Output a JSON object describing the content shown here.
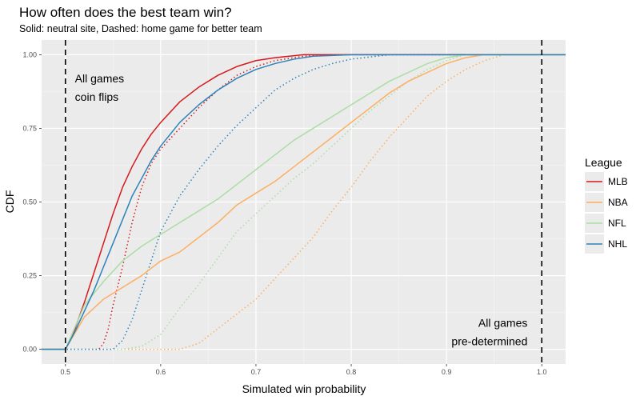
{
  "chart_data": {
    "type": "line",
    "title": "How often does the best team win?",
    "subtitle": "Solid: neutral site, Dashed: home game for better team",
    "xlabel": "Simulated win probability",
    "ylabel": "CDF",
    "xlim": [
      0.475,
      1.025
    ],
    "ylim": [
      -0.05,
      1.05
    ],
    "x_ticks": [
      0.5,
      0.6,
      0.7,
      0.8,
      0.9,
      1.0
    ],
    "x_tick_labels": [
      "0.5",
      "0.6",
      "0.7",
      "0.8",
      "0.9",
      "1.0"
    ],
    "y_ticks": [
      0,
      0.25,
      0.5,
      0.75,
      1.0
    ],
    "y_tick_labels": [
      "0.00",
      "0.25",
      "0.50",
      "0.75",
      "1.00"
    ],
    "grid": true,
    "legend": {
      "title": "League",
      "position": "right"
    },
    "reference_lines": [
      {
        "x": 0.5,
        "style": "dashed"
      },
      {
        "x": 1.0,
        "style": "dashed"
      }
    ],
    "annotations": [
      {
        "lines": [
          "All games",
          "coin flips"
        ],
        "x": 0.51,
        "y": 0.92,
        "anchor": "start"
      },
      {
        "lines": [
          "All games",
          "pre-determined"
        ],
        "x": 0.985,
        "y": 0.0,
        "anchor": "end"
      }
    ],
    "series": [
      {
        "name": "MLB",
        "style": "solid",
        "color": "#d7191c",
        "points": [
          [
            0.475,
            0
          ],
          [
            0.5,
            0
          ],
          [
            0.51,
            0.07
          ],
          [
            0.52,
            0.16
          ],
          [
            0.53,
            0.26
          ],
          [
            0.54,
            0.36
          ],
          [
            0.55,
            0.46
          ],
          [
            0.56,
            0.55
          ],
          [
            0.57,
            0.62
          ],
          [
            0.58,
            0.68
          ],
          [
            0.59,
            0.73
          ],
          [
            0.6,
            0.77
          ],
          [
            0.62,
            0.84
          ],
          [
            0.64,
            0.89
          ],
          [
            0.66,
            0.93
          ],
          [
            0.68,
            0.96
          ],
          [
            0.7,
            0.98
          ],
          [
            0.72,
            0.99
          ],
          [
            0.75,
            1.0
          ],
          [
            1.025,
            1.0
          ]
        ]
      },
      {
        "name": "MLB",
        "style": "dotted",
        "color": "#d7191c",
        "points": [
          [
            0.475,
            0
          ],
          [
            0.535,
            0
          ],
          [
            0.54,
            0.02
          ],
          [
            0.545,
            0.07
          ],
          [
            0.55,
            0.15
          ],
          [
            0.56,
            0.28
          ],
          [
            0.57,
            0.43
          ],
          [
            0.58,
            0.55
          ],
          [
            0.59,
            0.63
          ],
          [
            0.6,
            0.68
          ],
          [
            0.62,
            0.75
          ],
          [
            0.64,
            0.82
          ],
          [
            0.66,
            0.88
          ],
          [
            0.68,
            0.93
          ],
          [
            0.7,
            0.96
          ],
          [
            0.72,
            0.98
          ],
          [
            0.75,
            0.995
          ],
          [
            0.78,
            1.0
          ],
          [
            1.025,
            1.0
          ]
        ]
      },
      {
        "name": "NBA",
        "style": "solid",
        "color": "#fdae61",
        "points": [
          [
            0.475,
            0
          ],
          [
            0.5,
            0
          ],
          [
            0.52,
            0.11
          ],
          [
            0.54,
            0.17
          ],
          [
            0.56,
            0.21
          ],
          [
            0.58,
            0.25
          ],
          [
            0.6,
            0.3
          ],
          [
            0.62,
            0.33
          ],
          [
            0.64,
            0.38
          ],
          [
            0.66,
            0.43
          ],
          [
            0.68,
            0.49
          ],
          [
            0.7,
            0.53
          ],
          [
            0.72,
            0.57
          ],
          [
            0.74,
            0.62
          ],
          [
            0.76,
            0.67
          ],
          [
            0.78,
            0.72
          ],
          [
            0.8,
            0.77
          ],
          [
            0.82,
            0.82
          ],
          [
            0.84,
            0.87
          ],
          [
            0.86,
            0.91
          ],
          [
            0.88,
            0.94
          ],
          [
            0.9,
            0.97
          ],
          [
            0.92,
            0.99
          ],
          [
            0.94,
            1.0
          ],
          [
            1.025,
            1.0
          ]
        ]
      },
      {
        "name": "NBA",
        "style": "dotted",
        "color": "#fdae61",
        "points": [
          [
            0.475,
            0
          ],
          [
            0.6,
            0
          ],
          [
            0.62,
            0.0
          ],
          [
            0.64,
            0.02
          ],
          [
            0.66,
            0.07
          ],
          [
            0.68,
            0.12
          ],
          [
            0.7,
            0.17
          ],
          [
            0.72,
            0.24
          ],
          [
            0.74,
            0.31
          ],
          [
            0.76,
            0.38
          ],
          [
            0.78,
            0.47
          ],
          [
            0.8,
            0.55
          ],
          [
            0.82,
            0.64
          ],
          [
            0.84,
            0.72
          ],
          [
            0.86,
            0.79
          ],
          [
            0.88,
            0.86
          ],
          [
            0.9,
            0.91
          ],
          [
            0.92,
            0.95
          ],
          [
            0.94,
            0.98
          ],
          [
            0.96,
            1.0
          ],
          [
            1.025,
            1.0
          ]
        ]
      },
      {
        "name": "NFL",
        "style": "solid",
        "color": "#abdda4",
        "points": [
          [
            0.475,
            0
          ],
          [
            0.5,
            0
          ],
          [
            0.52,
            0.15
          ],
          [
            0.54,
            0.23
          ],
          [
            0.56,
            0.3
          ],
          [
            0.58,
            0.35
          ],
          [
            0.6,
            0.39
          ],
          [
            0.62,
            0.43
          ],
          [
            0.64,
            0.47
          ],
          [
            0.66,
            0.51
          ],
          [
            0.68,
            0.56
          ],
          [
            0.7,
            0.61
          ],
          [
            0.72,
            0.66
          ],
          [
            0.74,
            0.71
          ],
          [
            0.76,
            0.75
          ],
          [
            0.78,
            0.79
          ],
          [
            0.8,
            0.83
          ],
          [
            0.82,
            0.87
          ],
          [
            0.84,
            0.91
          ],
          [
            0.86,
            0.94
          ],
          [
            0.88,
            0.97
          ],
          [
            0.9,
            0.99
          ],
          [
            0.92,
            1.0
          ],
          [
            1.025,
            1.0
          ]
        ]
      },
      {
        "name": "NFL",
        "style": "dotted",
        "color": "#abdda4",
        "points": [
          [
            0.475,
            0
          ],
          [
            0.56,
            0
          ],
          [
            0.58,
            0.01
          ],
          [
            0.6,
            0.05
          ],
          [
            0.62,
            0.14
          ],
          [
            0.64,
            0.22
          ],
          [
            0.66,
            0.31
          ],
          [
            0.68,
            0.4
          ],
          [
            0.7,
            0.46
          ],
          [
            0.72,
            0.52
          ],
          [
            0.74,
            0.58
          ],
          [
            0.76,
            0.63
          ],
          [
            0.78,
            0.69
          ],
          [
            0.8,
            0.75
          ],
          [
            0.82,
            0.81
          ],
          [
            0.84,
            0.86
          ],
          [
            0.86,
            0.91
          ],
          [
            0.88,
            0.95
          ],
          [
            0.9,
            0.98
          ],
          [
            0.92,
            1.0
          ],
          [
            1.025,
            1.0
          ]
        ]
      },
      {
        "name": "NHL",
        "style": "solid",
        "color": "#2b83ba",
        "points": [
          [
            0.475,
            0
          ],
          [
            0.5,
            0
          ],
          [
            0.51,
            0.06
          ],
          [
            0.52,
            0.13
          ],
          [
            0.53,
            0.2
          ],
          [
            0.54,
            0.28
          ],
          [
            0.55,
            0.36
          ],
          [
            0.56,
            0.44
          ],
          [
            0.57,
            0.52
          ],
          [
            0.58,
            0.58
          ],
          [
            0.59,
            0.64
          ],
          [
            0.6,
            0.69
          ],
          [
            0.62,
            0.77
          ],
          [
            0.64,
            0.83
          ],
          [
            0.66,
            0.88
          ],
          [
            0.68,
            0.92
          ],
          [
            0.7,
            0.95
          ],
          [
            0.72,
            0.97
          ],
          [
            0.74,
            0.985
          ],
          [
            0.76,
            0.995
          ],
          [
            0.8,
            1.0
          ],
          [
            1.025,
            1.0
          ]
        ]
      },
      {
        "name": "NHL",
        "style": "dotted",
        "color": "#2b83ba",
        "points": [
          [
            0.475,
            0
          ],
          [
            0.55,
            0
          ],
          [
            0.56,
            0.03
          ],
          [
            0.57,
            0.1
          ],
          [
            0.58,
            0.2
          ],
          [
            0.59,
            0.3
          ],
          [
            0.6,
            0.4
          ],
          [
            0.62,
            0.52
          ],
          [
            0.64,
            0.61
          ],
          [
            0.66,
            0.69
          ],
          [
            0.68,
            0.76
          ],
          [
            0.7,
            0.82
          ],
          [
            0.72,
            0.88
          ],
          [
            0.74,
            0.92
          ],
          [
            0.76,
            0.95
          ],
          [
            0.78,
            0.97
          ],
          [
            0.8,
            0.985
          ],
          [
            0.84,
            1.0
          ],
          [
            1.025,
            1.0
          ]
        ]
      }
    ],
    "legend_items": [
      {
        "label": "MLB",
        "color": "#d7191c"
      },
      {
        "label": "NBA",
        "color": "#fdae61"
      },
      {
        "label": "NFL",
        "color": "#abdda4"
      },
      {
        "label": "NHL",
        "color": "#2b83ba"
      }
    ]
  }
}
